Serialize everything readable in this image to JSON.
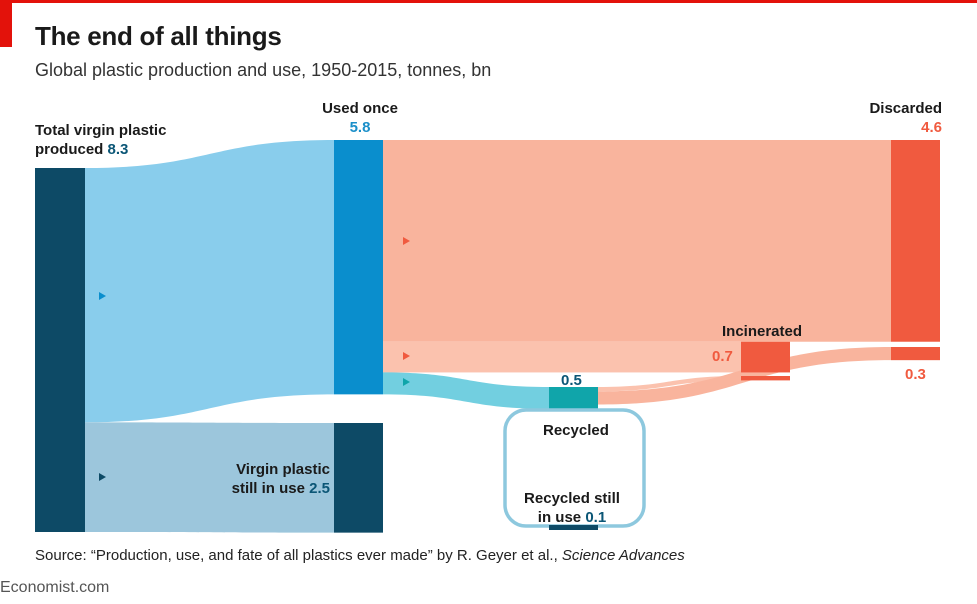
{
  "header": {
    "title": "The end of all things",
    "subtitle": "Global plastic production and use, 1950-2015, tonnes, bn"
  },
  "source": {
    "prefix": "Source: “Production, use, and fate of all plastics ever made” by R. Geyer et al., ",
    "journal": "Science Advances"
  },
  "brand": "Economist.com",
  "colors": {
    "total_node": "#0d4a66",
    "used_node": "#0a8ecd",
    "used_flow": "#89cdec",
    "in_use_flow": "#9cc6dc",
    "recycle_flow": "#72cfe0",
    "recycled_node": "#10a5aa",
    "discard_flow": "#f9b49d",
    "incin_flow": "#fbc2ae",
    "discard_node": "#f05a3f",
    "recycled_loop": "#8dc8de"
  },
  "chart_data": {
    "type": "sankey",
    "title": "The end of all things",
    "subtitle": "Global plastic production and use, 1950-2015, tonnes, bn",
    "units": "tonnes, bn",
    "nodes": [
      {
        "id": "total",
        "label": "Total virgin plastic produced",
        "value": 8.3
      },
      {
        "id": "used_once",
        "label": "Used once",
        "value": 5.8
      },
      {
        "id": "still_in_use",
        "label": "Virgin plastic still in use",
        "value": 2.5
      },
      {
        "id": "recycled",
        "label": "Recycled",
        "value": 0.5
      },
      {
        "id": "incinerated",
        "label": "Incinerated",
        "value": 0.7
      },
      {
        "id": "discarded",
        "label": "Discarded",
        "value": 4.6
      },
      {
        "id": "recycled_discarded",
        "label": "",
        "value": 0.3
      },
      {
        "id": "recycled_still_in_use",
        "label": "Recycled still in use",
        "value": 0.1
      }
    ],
    "links": [
      {
        "source": "total",
        "target": "used_once",
        "value": 5.8
      },
      {
        "source": "total",
        "target": "still_in_use",
        "value": 2.5
      },
      {
        "source": "used_once",
        "target": "discarded",
        "value": 4.6
      },
      {
        "source": "used_once",
        "target": "incinerated",
        "value": 0.7
      },
      {
        "source": "used_once",
        "target": "recycled",
        "value": 0.5
      },
      {
        "source": "recycled",
        "target": "incinerated",
        "value": 0.1
      },
      {
        "source": "recycled",
        "target": "discarded",
        "value": 0.3
      },
      {
        "source": "recycled",
        "target": "recycled_still_in_use",
        "value": 0.1
      }
    ],
    "labels": {
      "total_l1": "Total virgin plastic",
      "total_l2": "produced",
      "total_v": "8.3",
      "used_l": "Used once",
      "used_v": "5.8",
      "inuse_l1": "Virgin plastic",
      "inuse_l2": "still in use",
      "inuse_v": "2.5",
      "discarded_l": "Discarded",
      "discarded_v": "4.6",
      "incinerated_l": "Incinerated",
      "incinerated_v": "0.7",
      "recycled_v": "0.5",
      "recycled_l": "Recycled",
      "recycled_discarded_v": "0.3",
      "rstill_l1": "Recycled still",
      "rstill_l2": "in use",
      "rstill_v": "0.1"
    }
  }
}
